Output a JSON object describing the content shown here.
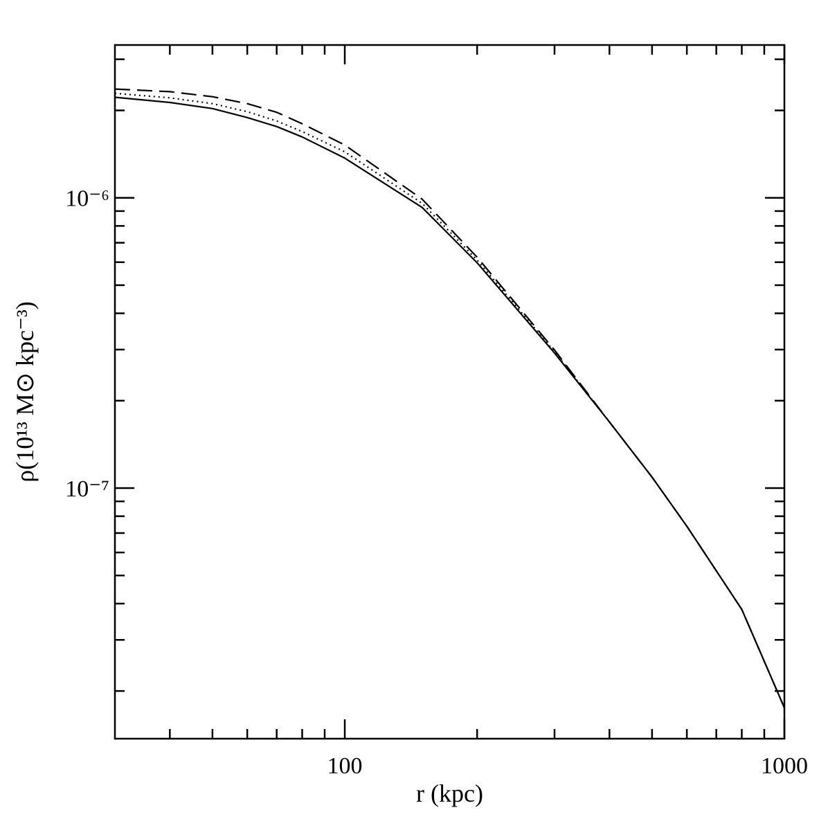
{
  "chart_data": {
    "type": "line",
    "x_label": "r (kpc)",
    "y_label": "ρ(10¹³ M⊙ kpc⁻³)",
    "xlog": true,
    "ylog": true,
    "xlim": [
      30,
      1000
    ],
    "ylim": [
      1.37e-08,
      3.36e-06
    ],
    "xticks": [
      100,
      1000
    ],
    "xminorticks": [
      40,
      50,
      60,
      70,
      80,
      90,
      200,
      300,
      400,
      500,
      600,
      700,
      800,
      900
    ],
    "yticks": [
      {
        "value": 1e-07,
        "label": "10⁻⁷"
      },
      {
        "value": 1e-06,
        "label": "10⁻⁶"
      }
    ],
    "yminorticks": [
      2e-08,
      3e-08,
      4e-08,
      5e-08,
      6e-08,
      7e-08,
      8e-08,
      9e-08,
      2e-07,
      3e-07,
      4e-07,
      5e-07,
      6e-07,
      7e-07,
      8e-07,
      9e-07,
      2e-06,
      3e-06
    ],
    "x": [
      30,
      40,
      50,
      60,
      70,
      80,
      100,
      150,
      200,
      300,
      400,
      500,
      600,
      800,
      1000
    ],
    "series": [
      {
        "color": "#000000",
        "dash": "solid",
        "values": [
          2.22e-06,
          2.13e-06,
          2.03e-06,
          1.89e-06,
          1.76e-06,
          1.62e-06,
          1.37e-06,
          9.26e-07,
          5.97e-07,
          2.92e-07,
          1.69e-07,
          1.09e-07,
          7.39e-08,
          3.82e-08,
          1.75e-08
        ]
      },
      {
        "color": "#000000",
        "dash": "dotted",
        "values": [
          2.29e-06,
          2.21e-06,
          2.11e-06,
          1.98e-06,
          1.84e-06,
          1.69e-06,
          1.44e-06,
          9.57e-07,
          6.1e-07,
          2.95e-07,
          1.69e-07,
          1.09e-07,
          7.39e-08,
          3.82e-08,
          1.75e-08
        ]
      },
      {
        "color": "#000000",
        "dash": "dashed",
        "values": [
          2.37e-06,
          2.32e-06,
          2.23e-06,
          2.11e-06,
          1.97e-06,
          1.8e-06,
          1.52e-06,
          9.89e-07,
          6.24e-07,
          2.99e-07,
          1.69e-07,
          1.09e-07,
          7.39e-08,
          3.82e-08,
          1.75e-08
        ]
      }
    ]
  }
}
